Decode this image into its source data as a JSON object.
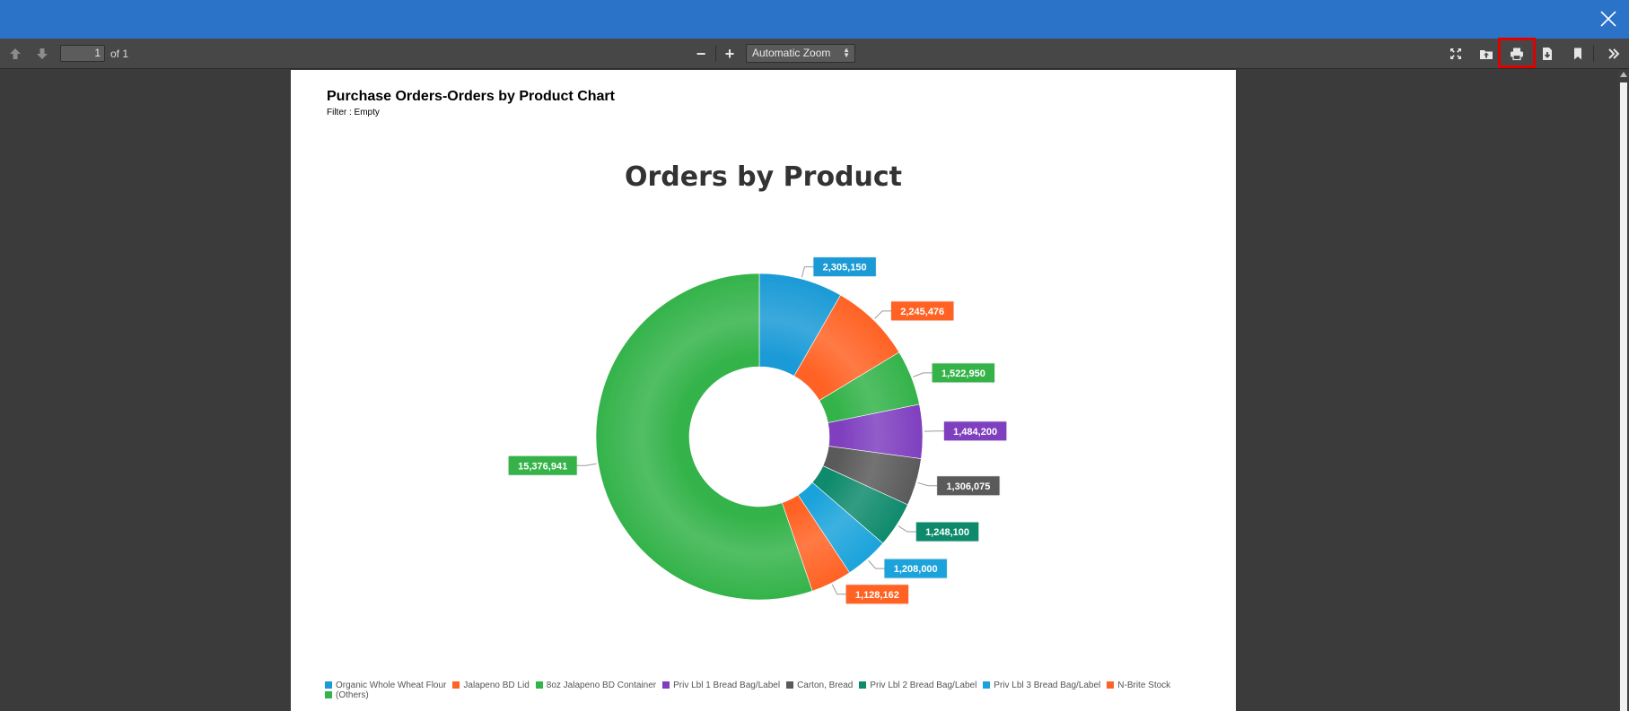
{
  "viewer": {
    "page_number": "1",
    "page_of": "of 1",
    "zoom_label": "Automatic Zoom",
    "zoom_out_label": "−",
    "zoom_in_label": "+"
  },
  "report": {
    "title": "Purchase Orders-Orders by Product Chart",
    "filter": "Filter : Empty"
  },
  "icons": [
    "close-icon",
    "arrow-up-icon",
    "arrow-down-icon",
    "fullscreen-icon",
    "open-file-icon",
    "print-icon",
    "download-icon",
    "bookmark-icon",
    "double-chevron-right-icon"
  ],
  "chart_data": {
    "type": "pie",
    "title": "Orders by Product",
    "donut": true,
    "legend_position": "bottom",
    "categories": [
      "Organic Whole Wheat Flour",
      "Jalapeno BD Lid",
      "8oz Jalapeno BD Container",
      "Priv Lbl 1 Bread Bag/Label",
      "Carton, Bread",
      "Priv Lbl 2 Bread Bag/Label",
      "Priv Lbl 3 Bread Bag/Label",
      "N-Brite Stock",
      "(Others)"
    ],
    "values": [
      2305150,
      2245476,
      1522950,
      1484200,
      1306075,
      1248100,
      1208000,
      1128162,
      15376941
    ],
    "labels": [
      "2,305,150",
      "2,245,476",
      "1,522,950",
      "1,484,200",
      "1,306,075",
      "1,248,100",
      "1,208,000",
      "1,128,162",
      "15,376,941"
    ],
    "colors": [
      "#1a9ad6",
      "#ff6224",
      "#34b34a",
      "#7f3fbf",
      "#5a5a5a",
      "#0f8a6c",
      "#1aa3db",
      "#ff6224",
      "#34b34a"
    ]
  }
}
